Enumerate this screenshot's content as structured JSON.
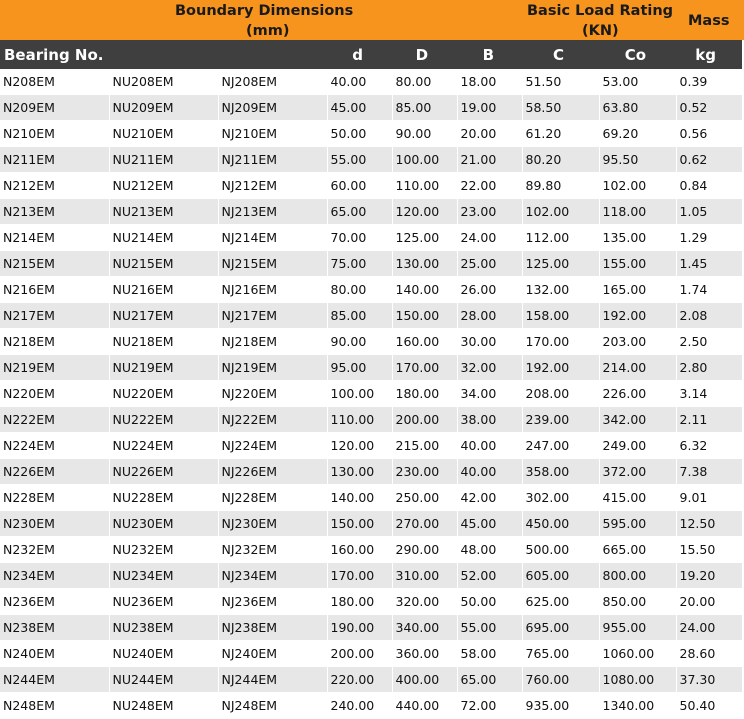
{
  "header": {
    "boundary_line1": "Boundary Dimensions",
    "boundary_line2": "(mm)",
    "load_line1": "Basic Load Rating",
    "load_line2": "(KN)",
    "mass": "Mass"
  },
  "columns": [
    "Bearing No.",
    "d",
    "D",
    "B",
    "C",
    "Co",
    "kg"
  ],
  "rows": [
    [
      "N208EM",
      "NU208EM",
      "NJ208EM",
      "40.00",
      "80.00",
      "18.00",
      "51.50",
      "53.00",
      "0.39"
    ],
    [
      "N209EM",
      "NU209EM",
      "NJ209EM",
      "45.00",
      "85.00",
      "19.00",
      "58.50",
      "63.80",
      "0.52"
    ],
    [
      "N210EM",
      "NU210EM",
      "NJ210EM",
      "50.00",
      "90.00",
      "20.00",
      "61.20",
      "69.20",
      "0.56"
    ],
    [
      "N211EM",
      "NU211EM",
      "NJ211EM",
      "55.00",
      "100.00",
      "21.00",
      "80.20",
      "95.50",
      "0.62"
    ],
    [
      "N212EM",
      "NU212EM",
      "NJ212EM",
      "60.00",
      "110.00",
      "22.00",
      "89.80",
      "102.00",
      "0.84"
    ],
    [
      "N213EM",
      "NU213EM",
      "NJ213EM",
      "65.00",
      "120.00",
      "23.00",
      "102.00",
      "118.00",
      "1.05"
    ],
    [
      "N214EM",
      "NU214EM",
      "NJ214EM",
      "70.00",
      "125.00",
      "24.00",
      "112.00",
      "135.00",
      "1.29"
    ],
    [
      "N215EM",
      "NU215EM",
      "NJ215EM",
      "75.00",
      "130.00",
      "25.00",
      "125.00",
      "155.00",
      "1.45"
    ],
    [
      "N216EM",
      "NU216EM",
      "NJ216EM",
      "80.00",
      "140.00",
      "26.00",
      "132.00",
      "165.00",
      "1.74"
    ],
    [
      "N217EM",
      "NU217EM",
      "NJ217EM",
      "85.00",
      "150.00",
      "28.00",
      "158.00",
      "192.00",
      "2.08"
    ],
    [
      "N218EM",
      "NU218EM",
      "NJ218EM",
      "90.00",
      "160.00",
      "30.00",
      "170.00",
      "203.00",
      "2.50"
    ],
    [
      "N219EM",
      "NU219EM",
      "NJ219EM",
      "95.00",
      "170.00",
      "32.00",
      "192.00",
      "214.00",
      "2.80"
    ],
    [
      "N220EM",
      "NU220EM",
      "NJ220EM",
      "100.00",
      "180.00",
      "34.00",
      "208.00",
      "226.00",
      "3.14"
    ],
    [
      "N222EM",
      "NU222EM",
      "NJ222EM",
      "110.00",
      "200.00",
      "38.00",
      "239.00",
      "342.00",
      "2.11"
    ],
    [
      "N224EM",
      "NU224EM",
      "NJ224EM",
      "120.00",
      "215.00",
      "40.00",
      "247.00",
      "249.00",
      "6.32"
    ],
    [
      "N226EM",
      "NU226EM",
      "NJ226EM",
      "130.00",
      "230.00",
      "40.00",
      "358.00",
      "372.00",
      "7.38"
    ],
    [
      "N228EM",
      "NU228EM",
      "NJ228EM",
      "140.00",
      "250.00",
      "42.00",
      "302.00",
      "415.00",
      "9.01"
    ],
    [
      "N230EM",
      "NU230EM",
      "NJ230EM",
      "150.00",
      "270.00",
      "45.00",
      "450.00",
      "595.00",
      "12.50"
    ],
    [
      "N232EM",
      "NU232EM",
      "NJ232EM",
      "160.00",
      "290.00",
      "48.00",
      "500.00",
      "665.00",
      "15.50"
    ],
    [
      "N234EM",
      "NU234EM",
      "NJ234EM",
      "170.00",
      "310.00",
      "52.00",
      "605.00",
      "800.00",
      "19.20"
    ],
    [
      "N236EM",
      "NU236EM",
      "NJ236EM",
      "180.00",
      "320.00",
      "50.00",
      "625.00",
      "850.00",
      "20.00"
    ],
    [
      "N238EM",
      "NU238EM",
      "NJ238EM",
      "190.00",
      "340.00",
      "55.00",
      "695.00",
      "955.00",
      "24.00"
    ],
    [
      "N240EM",
      "NU240EM",
      "NJ240EM",
      "200.00",
      "360.00",
      "58.00",
      "765.00",
      "1060.00",
      "28.60"
    ],
    [
      "N244EM",
      "NU244EM",
      "NJ244EM",
      "220.00",
      "400.00",
      "65.00",
      "760.00",
      "1080.00",
      "37.30"
    ],
    [
      "N248EM",
      "NU248EM",
      "NJ248EM",
      "240.00",
      "440.00",
      "72.00",
      "935.00",
      "1340.00",
      "50.40"
    ]
  ]
}
